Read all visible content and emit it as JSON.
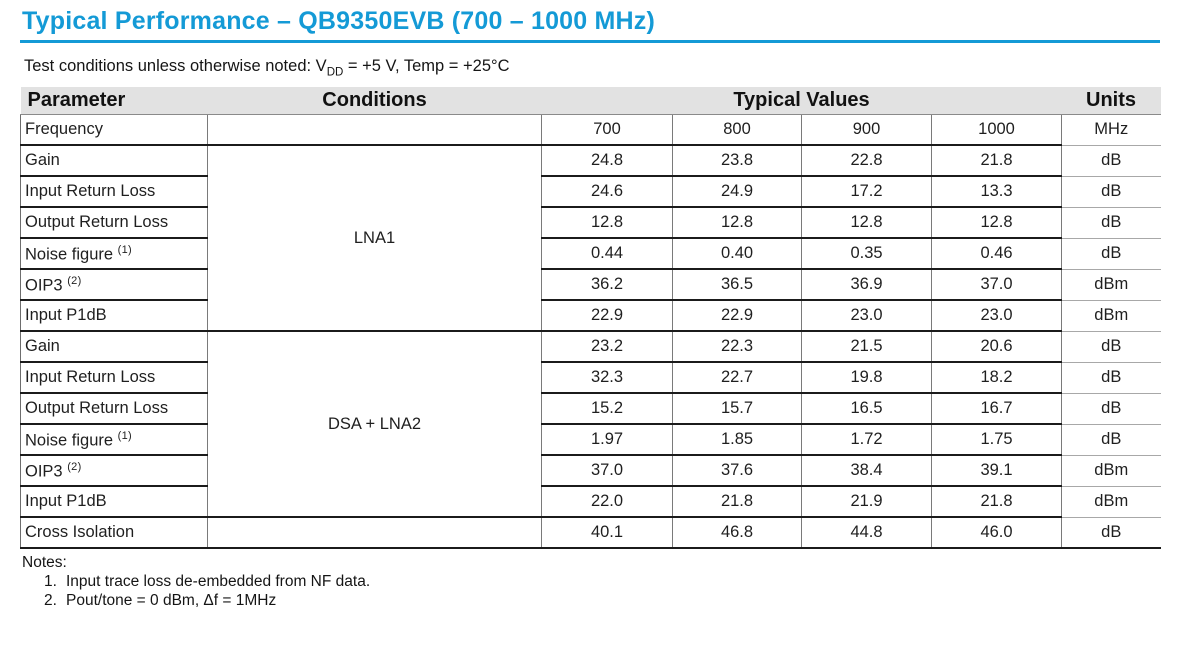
{
  "accent_color": "#149ad6",
  "title": "Typical Performance – QB9350EVB (700 – 1000 MHz)",
  "test_conditions": {
    "prefix": "Test conditions unless otherwise noted:  ",
    "v_symbol": "V",
    "v_subscript": "DD",
    "suffix": " = +5 V, Temp = +25°C"
  },
  "table": {
    "headers": {
      "parameter": "Parameter",
      "conditions": "Conditions",
      "typical_values": "Typical Values",
      "units": "Units"
    },
    "frequency_row": {
      "name": "Frequency",
      "sup": "",
      "condition": "",
      "values": [
        "700",
        "800",
        "900",
        "1000"
      ],
      "units": "MHz"
    },
    "groups": [
      {
        "condition": "LNA1",
        "rows": [
          {
            "name": "Gain",
            "sup": "",
            "values": [
              "24.8",
              "23.8",
              "22.8",
              "21.8"
            ],
            "units": "dB"
          },
          {
            "name": "Input Return Loss",
            "sup": "",
            "values": [
              "24.6",
              "24.9",
              "17.2",
              "13.3"
            ],
            "units": "dB"
          },
          {
            "name": "Output Return Loss",
            "sup": "",
            "values": [
              "12.8",
              "12.8",
              "12.8",
              "12.8"
            ],
            "units": "dB"
          },
          {
            "name": "Noise figure",
            "sup": "(1)",
            "values": [
              "0.44",
              "0.40",
              "0.35",
              "0.46"
            ],
            "units": "dB"
          },
          {
            "name": "OIP3",
            "sup": "(2)",
            "values": [
              "36.2",
              "36.5",
              "36.9",
              "37.0"
            ],
            "units": "dBm"
          },
          {
            "name": "Input P1dB",
            "sup": "",
            "values": [
              "22.9",
              "22.9",
              "23.0",
              "23.0"
            ],
            "units": "dBm"
          }
        ]
      },
      {
        "condition": "DSA + LNA2",
        "rows": [
          {
            "name": "Gain",
            "sup": "",
            "values": [
              "23.2",
              "22.3",
              "21.5",
              "20.6"
            ],
            "units": "dB"
          },
          {
            "name": "Input Return Loss",
            "sup": "",
            "values": [
              "32.3",
              "22.7",
              "19.8",
              "18.2"
            ],
            "units": "dB"
          },
          {
            "name": "Output Return Loss",
            "sup": "",
            "values": [
              "15.2",
              "15.7",
              "16.5",
              "16.7"
            ],
            "units": "dB"
          },
          {
            "name": "Noise figure",
            "sup": "(1)",
            "values": [
              "1.97",
              "1.85",
              "1.72",
              "1.75"
            ],
            "units": "dB"
          },
          {
            "name": "OIP3",
            "sup": "(2)",
            "values": [
              "37.0",
              "37.6",
              "38.4",
              "39.1"
            ],
            "units": "dBm"
          },
          {
            "name": "Input P1dB",
            "sup": "",
            "values": [
              "22.0",
              "21.8",
              "21.9",
              "21.8"
            ],
            "units": "dBm"
          }
        ]
      }
    ],
    "cross_isolation_row": {
      "name": "Cross Isolation",
      "sup": "",
      "condition": "",
      "values": [
        "40.1",
        "46.8",
        "44.8",
        "46.0"
      ],
      "units": "dB"
    }
  },
  "notes": {
    "label": "Notes:",
    "items": [
      {
        "num": "1.",
        "text": "Input trace loss de-embedded from NF data."
      },
      {
        "num": "2.",
        "text": "Pout/tone = 0 dBm, Δf = 1MHz"
      }
    ]
  }
}
